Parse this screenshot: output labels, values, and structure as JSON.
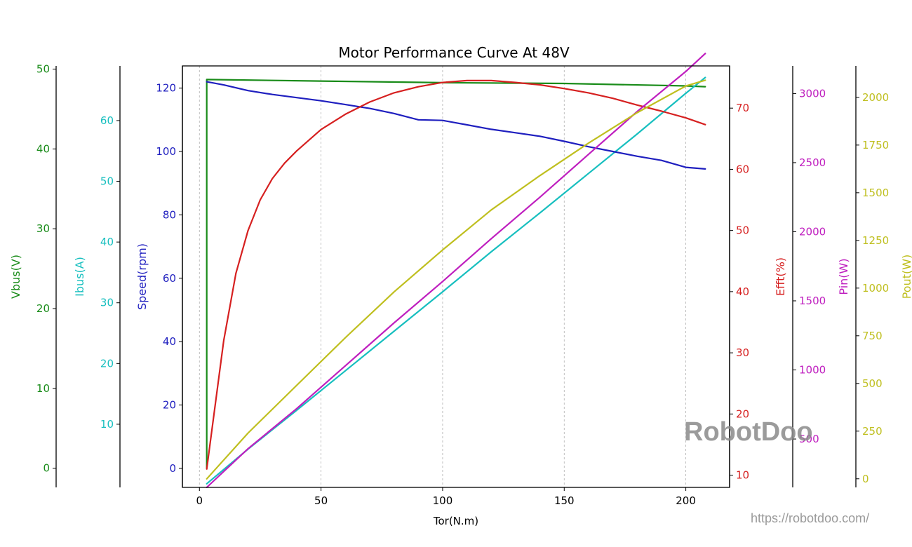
{
  "chart_data": {
    "type": "line",
    "title": "Motor Performance Curve At 48V",
    "xlabel": "Tor(N.m)",
    "xlim": [
      -7,
      218
    ],
    "x_ticks": [
      0,
      50,
      100,
      150,
      200
    ],
    "grid": "vertical dashed",
    "axes": [
      {
        "id": "vbus",
        "label": "Vbus(V)",
        "color": "#1a8c1a",
        "side": "left",
        "lim": [
          -2.4,
          50.4
        ],
        "ticks": [
          0,
          10,
          20,
          30,
          40,
          50
        ]
      },
      {
        "id": "ibus",
        "label": "Ibus(A)",
        "color": "#17bfbf",
        "side": "left",
        "lim": [
          -0.4,
          69.0
        ],
        "ticks": [
          10,
          20,
          30,
          40,
          50,
          60
        ]
      },
      {
        "id": "speed",
        "label": "Speed(rpm)",
        "color": "#1f1fbf",
        "side": "left",
        "lim": [
          -6,
          127
        ],
        "ticks": [
          0,
          20,
          40,
          60,
          80,
          100,
          120
        ]
      },
      {
        "id": "efft",
        "label": "Efft(%)",
        "color": "#d62020",
        "side": "right",
        "lim": [
          8.0,
          76.9
        ],
        "ticks": [
          10,
          20,
          30,
          40,
          50,
          60,
          70
        ]
      },
      {
        "id": "pin",
        "label": "Pin(W)",
        "color": "#bf1fbf",
        "side": "right",
        "lim": [
          150,
          3200
        ],
        "ticks": [
          500,
          1000,
          1500,
          2000,
          2500,
          3000
        ]
      },
      {
        "id": "pout",
        "label": "Pout(W)",
        "color": "#bfbf1f",
        "side": "right",
        "lim": [
          -45,
          2165
        ],
        "ticks": [
          0,
          250,
          500,
          750,
          1000,
          1250,
          1500,
          1750,
          2000
        ]
      }
    ],
    "series": [
      {
        "name": "Vbus",
        "axis": "vbus",
        "color": "#1a8c1a",
        "x": [
          3,
          3,
          50,
          100,
          150,
          200,
          208
        ],
        "y": [
          0,
          48.7,
          48.5,
          48.3,
          48.2,
          47.9,
          47.8
        ]
      },
      {
        "name": "Ibus",
        "axis": "ibus",
        "color": "#17bfbf",
        "x": [
          3,
          20,
          40,
          60,
          80,
          100,
          120,
          140,
          160,
          180,
          200,
          208
        ],
        "y": [
          0.2,
          5.9,
          12.3,
          18.8,
          25.3,
          31.8,
          38.4,
          44.8,
          51.3,
          57.8,
          64.5,
          67.1
        ]
      },
      {
        "name": "Speed",
        "axis": "speed",
        "color": "#1f1fbf",
        "x": [
          3,
          10,
          20,
          30,
          40,
          50,
          60,
          70,
          80,
          90,
          100,
          110,
          120,
          130,
          140,
          150,
          160,
          170,
          180,
          190,
          200,
          208
        ],
        "y": [
          122,
          121,
          119.2,
          118,
          117,
          116,
          114.8,
          113.6,
          112,
          110,
          109.8,
          108.4,
          107,
          105.9,
          104.8,
          103.2,
          101.5,
          100,
          98.5,
          97.2,
          95,
          94.5
        ]
      },
      {
        "name": "Efft",
        "axis": "efft",
        "color": "#d62020",
        "x": [
          3,
          5,
          10,
          15,
          20,
          25,
          30,
          35,
          40,
          50,
          60,
          70,
          80,
          90,
          100,
          110,
          120,
          130,
          140,
          150,
          160,
          170,
          180,
          190,
          200,
          208
        ],
        "y": [
          11,
          17,
          32,
          43,
          50,
          55,
          58.5,
          61,
          63,
          66.5,
          69,
          71,
          72.5,
          73.5,
          74.2,
          74.5,
          74.5,
          74.2,
          73.8,
          73.2,
          72.5,
          71.6,
          70.5,
          69.5,
          68.4,
          67.3
        ]
      },
      {
        "name": "Pin",
        "axis": "pin",
        "color": "#bf1fbf",
        "x": [
          3,
          20,
          40,
          60,
          80,
          100,
          120,
          140,
          160,
          180,
          200,
          208
        ],
        "y": [
          150,
          430,
          720,
          1030,
          1340,
          1640,
          1950,
          2250,
          2560,
          2870,
          3160,
          3290
        ]
      },
      {
        "name": "Pout",
        "axis": "pout",
        "color": "#bfbf1f",
        "x": [
          3,
          20,
          40,
          60,
          80,
          100,
          120,
          140,
          160,
          180,
          200,
          208
        ],
        "y": [
          0,
          240,
          490,
          740,
          980,
          1200,
          1410,
          1590,
          1760,
          1920,
          2060,
          2090
        ]
      }
    ]
  },
  "watermark": {
    "brand": "RobotDoo",
    "url": "https://robotdoo.com/"
  }
}
